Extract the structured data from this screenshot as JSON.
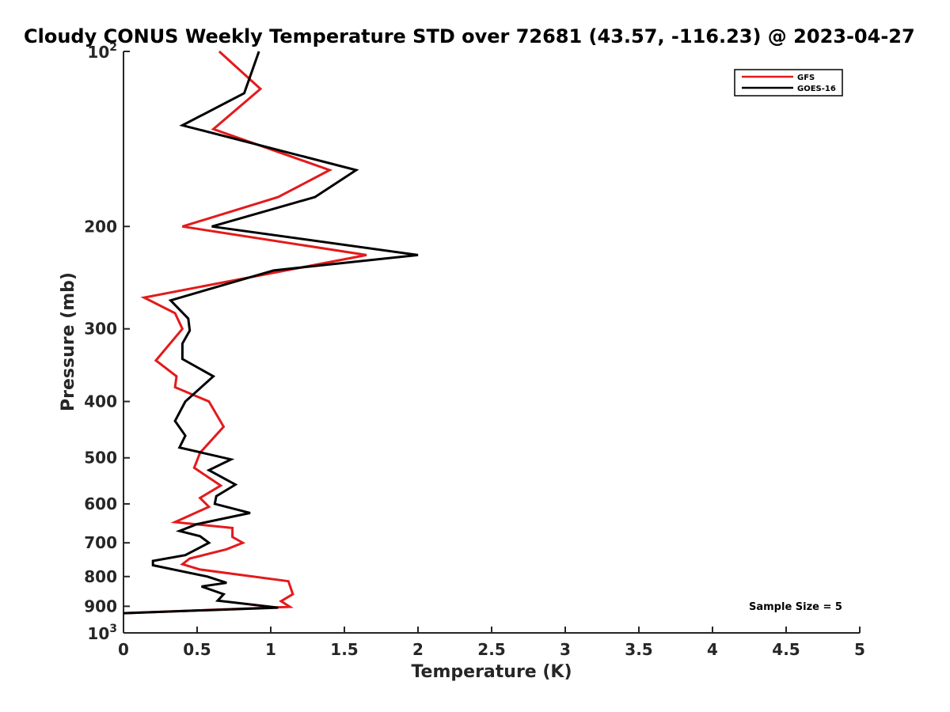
{
  "chart_data": {
    "type": "line",
    "title": "Cloudy CONUS Weekly Temperature STD over 72681 (43.57, -116.23) @ 2023-04-27",
    "xlabel": "Temperature (K)",
    "ylabel": "Pressure (mb)",
    "xlim": [
      0,
      5
    ],
    "ylim": [
      100,
      1000
    ],
    "yscale": "log",
    "y_reversed": true,
    "grid": false,
    "legend_position": "top-right",
    "x_ticks": [
      {
        "value": 0,
        "label": "0"
      },
      {
        "value": 0.5,
        "label": "0.5"
      },
      {
        "value": 1,
        "label": "1"
      },
      {
        "value": 1.5,
        "label": "1.5"
      },
      {
        "value": 2,
        "label": "2"
      },
      {
        "value": 2.5,
        "label": "2.5"
      },
      {
        "value": 3,
        "label": "3"
      },
      {
        "value": 3.5,
        "label": "3.5"
      },
      {
        "value": 4,
        "label": "4"
      },
      {
        "value": 4.5,
        "label": "4.5"
      },
      {
        "value": 5,
        "label": "5"
      }
    ],
    "y_ticks": [
      {
        "value": 100,
        "base": "10",
        "exp": "2"
      },
      {
        "value": 200,
        "label": "200"
      },
      {
        "value": 300,
        "label": "300"
      },
      {
        "value": 400,
        "label": "400"
      },
      {
        "value": 500,
        "label": "500"
      },
      {
        "value": 600,
        "label": "600"
      },
      {
        "value": 700,
        "label": "700"
      },
      {
        "value": 800,
        "label": "800"
      },
      {
        "value": 900,
        "label": "900"
      },
      {
        "value": 1000,
        "base": "10",
        "exp": "3"
      }
    ],
    "annotation": "Sample Size = 5",
    "series": [
      {
        "name": "GFS",
        "color": "#e31a1c",
        "points": [
          {
            "x": 0.65,
            "y": 100
          },
          {
            "x": 0.93,
            "y": 116
          },
          {
            "x": 0.61,
            "y": 136
          },
          {
            "x": 1.4,
            "y": 160
          },
          {
            "x": 1.05,
            "y": 178
          },
          {
            "x": 0.4,
            "y": 200
          },
          {
            "x": 1.65,
            "y": 224
          },
          {
            "x": 0.14,
            "y": 265
          },
          {
            "x": 0.35,
            "y": 282
          },
          {
            "x": 0.4,
            "y": 300
          },
          {
            "x": 0.22,
            "y": 340
          },
          {
            "x": 0.36,
            "y": 362
          },
          {
            "x": 0.35,
            "y": 378
          },
          {
            "x": 0.58,
            "y": 400
          },
          {
            "x": 0.68,
            "y": 442
          },
          {
            "x": 0.52,
            "y": 490
          },
          {
            "x": 0.48,
            "y": 520
          },
          {
            "x": 0.66,
            "y": 558
          },
          {
            "x": 0.52,
            "y": 586
          },
          {
            "x": 0.58,
            "y": 607
          },
          {
            "x": 0.35,
            "y": 645
          },
          {
            "x": 0.74,
            "y": 660
          },
          {
            "x": 0.74,
            "y": 684
          },
          {
            "x": 0.81,
            "y": 700
          },
          {
            "x": 0.7,
            "y": 718
          },
          {
            "x": 0.45,
            "y": 745
          },
          {
            "x": 0.4,
            "y": 762
          },
          {
            "x": 0.52,
            "y": 778
          },
          {
            "x": 1.12,
            "y": 815
          },
          {
            "x": 1.15,
            "y": 858
          },
          {
            "x": 1.07,
            "y": 882
          },
          {
            "x": 1.13,
            "y": 902
          },
          {
            "x": 0.0,
            "y": 925
          }
        ]
      },
      {
        "name": "GOES-16",
        "color": "#000000",
        "points": [
          {
            "x": 0.92,
            "y": 100
          },
          {
            "x": 0.82,
            "y": 118
          },
          {
            "x": 0.4,
            "y": 134
          },
          {
            "x": 1.58,
            "y": 160
          },
          {
            "x": 1.3,
            "y": 178
          },
          {
            "x": 0.6,
            "y": 200
          },
          {
            "x": 2.0,
            "y": 224
          },
          {
            "x": 1.02,
            "y": 238
          },
          {
            "x": 0.32,
            "y": 268
          },
          {
            "x": 0.44,
            "y": 288
          },
          {
            "x": 0.45,
            "y": 302
          },
          {
            "x": 0.4,
            "y": 318
          },
          {
            "x": 0.4,
            "y": 338
          },
          {
            "x": 0.61,
            "y": 362
          },
          {
            "x": 0.42,
            "y": 400
          },
          {
            "x": 0.35,
            "y": 432
          },
          {
            "x": 0.42,
            "y": 458
          },
          {
            "x": 0.38,
            "y": 480
          },
          {
            "x": 0.73,
            "y": 503
          },
          {
            "x": 0.58,
            "y": 525
          },
          {
            "x": 0.76,
            "y": 556
          },
          {
            "x": 0.63,
            "y": 582
          },
          {
            "x": 0.62,
            "y": 600
          },
          {
            "x": 0.86,
            "y": 622
          },
          {
            "x": 0.5,
            "y": 650
          },
          {
            "x": 0.38,
            "y": 668
          },
          {
            "x": 0.52,
            "y": 682
          },
          {
            "x": 0.58,
            "y": 700
          },
          {
            "x": 0.42,
            "y": 735
          },
          {
            "x": 0.2,
            "y": 752
          },
          {
            "x": 0.2,
            "y": 765
          },
          {
            "x": 0.57,
            "y": 800
          },
          {
            "x": 0.7,
            "y": 820
          },
          {
            "x": 0.53,
            "y": 832
          },
          {
            "x": 0.68,
            "y": 858
          },
          {
            "x": 0.64,
            "y": 880
          },
          {
            "x": 1.05,
            "y": 905
          },
          {
            "x": 0.0,
            "y": 925
          }
        ]
      }
    ]
  }
}
